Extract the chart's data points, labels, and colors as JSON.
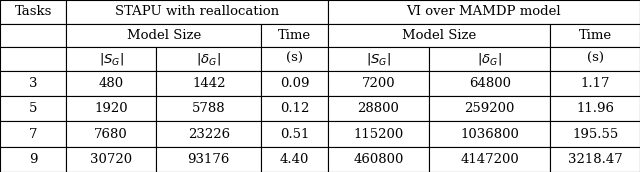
{
  "rows": [
    [
      "3",
      "480",
      "1442",
      "0.09",
      "7200",
      "64800",
      "1.17"
    ],
    [
      "5",
      "1920",
      "5788",
      "0.12",
      "28800",
      "259200",
      "11.96"
    ],
    [
      "7",
      "7680",
      "23226",
      "0.51",
      "115200",
      "1036800",
      "195.55"
    ],
    [
      "9",
      "30720",
      "93176",
      "4.40",
      "460800",
      "4147200",
      "3218.47"
    ]
  ],
  "bg_color": "#ffffff",
  "border_color": "#000000",
  "text_color": "#000000",
  "fontsize": 9.5,
  "header_fontsize": 9.5
}
